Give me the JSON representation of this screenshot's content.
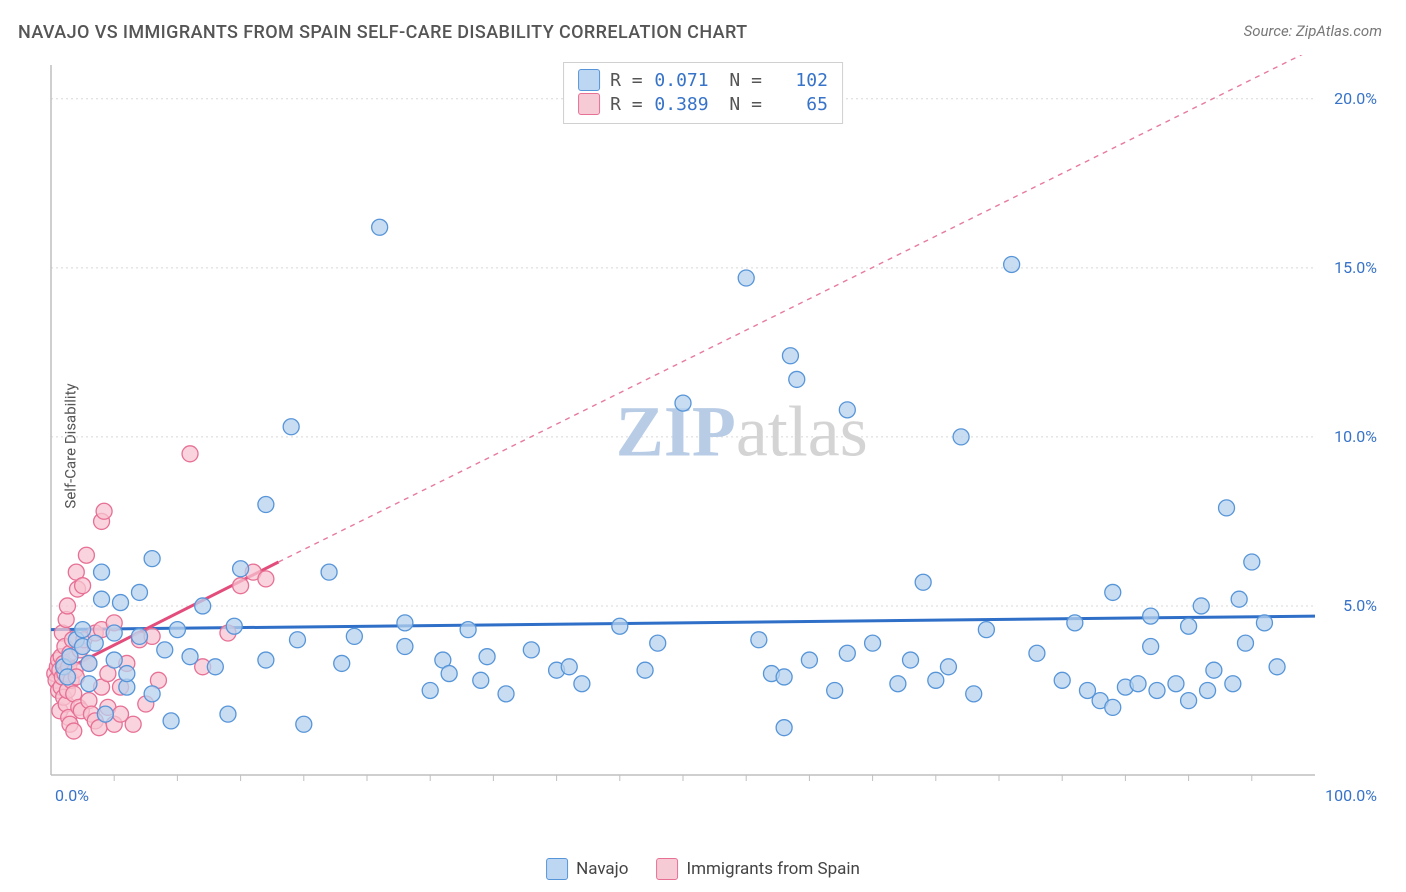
{
  "title": "NAVAJO VS IMMIGRANTS FROM SPAIN SELF-CARE DISABILITY CORRELATION CHART",
  "source": "Source: ZipAtlas.com",
  "ylabel": "Self-Care Disability",
  "watermark": {
    "text_zip": "ZIP",
    "text_atlas": "atlas",
    "color_zip": "#b8cce6",
    "color_atlas": "#d4d4d4",
    "fontsize": 72
  },
  "chart": {
    "type": "scatter-correlation",
    "background_color": "#ffffff",
    "grid_color": "#d8d8d8",
    "axis_color": "#bfbfbf",
    "tick_label_color": "#3773c8",
    "tick_fontsize": 16,
    "xlim": [
      0,
      100
    ],
    "ylim": [
      0,
      21
    ],
    "x_ticks": [
      0,
      100
    ],
    "x_tick_labels": [
      "0.0%",
      "100.0%"
    ],
    "y_ticks": [
      5,
      10,
      15,
      20
    ],
    "y_tick_labels": [
      "5.0%",
      "10.0%",
      "15.0%",
      "20.0%"
    ],
    "x_minor_grid": [
      5,
      10,
      15,
      20,
      25,
      30,
      35,
      40,
      45,
      50,
      55,
      60,
      65,
      70,
      75,
      80,
      85,
      90,
      95
    ],
    "marker_radius": 8,
    "marker_stroke_width": 1.3,
    "series": {
      "navajo": {
        "label": "Navajo",
        "R": "0.071",
        "N": "102",
        "fill": "#b5d1ee",
        "stroke": "#5795d9",
        "trend": {
          "x1": 0,
          "y1": 4.3,
          "x2": 100,
          "y2": 4.7,
          "color": "#2f6fc7",
          "width": 3,
          "dash": ""
        },
        "trend_ext": null,
        "points": [
          [
            1.0,
            3.2
          ],
          [
            1.3,
            2.9
          ],
          [
            1.5,
            3.5
          ],
          [
            2.0,
            4.0
          ],
          [
            2.5,
            3.8
          ],
          [
            2.5,
            4.3
          ],
          [
            3.0,
            2.7
          ],
          [
            3.0,
            3.3
          ],
          [
            3.5,
            3.9
          ],
          [
            4.0,
            5.2
          ],
          [
            4.0,
            6.0
          ],
          [
            4.3,
            1.8
          ],
          [
            5.0,
            3.4
          ],
          [
            5.0,
            4.2
          ],
          [
            5.5,
            5.1
          ],
          [
            6.0,
            2.6
          ],
          [
            6.0,
            3.0
          ],
          [
            7.0,
            4.1
          ],
          [
            7.0,
            5.4
          ],
          [
            8.0,
            2.4
          ],
          [
            8.0,
            6.4
          ],
          [
            9.0,
            3.7
          ],
          [
            9.5,
            1.6
          ],
          [
            10.0,
            4.3
          ],
          [
            11.0,
            3.5
          ],
          [
            12.0,
            5.0
          ],
          [
            13.0,
            3.2
          ],
          [
            14.0,
            1.8
          ],
          [
            14.5,
            4.4
          ],
          [
            15.0,
            6.1
          ],
          [
            17.0,
            3.4
          ],
          [
            17.0,
            8.0
          ],
          [
            19.0,
            10.3
          ],
          [
            19.5,
            4.0
          ],
          [
            20.0,
            1.5
          ],
          [
            22.0,
            6.0
          ],
          [
            23.0,
            3.3
          ],
          [
            24.0,
            4.1
          ],
          [
            26.0,
            16.2
          ],
          [
            28.0,
            3.8
          ],
          [
            28.0,
            4.5
          ],
          [
            30.0,
            2.5
          ],
          [
            31.0,
            3.4
          ],
          [
            31.5,
            3.0
          ],
          [
            33.0,
            4.3
          ],
          [
            34.0,
            2.8
          ],
          [
            34.5,
            3.5
          ],
          [
            36.0,
            2.4
          ],
          [
            38.0,
            3.7
          ],
          [
            40.0,
            3.1
          ],
          [
            41.0,
            3.2
          ],
          [
            42.0,
            2.7
          ],
          [
            45.0,
            4.4
          ],
          [
            47.0,
            3.1
          ],
          [
            48.0,
            3.9
          ],
          [
            50.0,
            11.0
          ],
          [
            55.0,
            14.7
          ],
          [
            56.0,
            4.0
          ],
          [
            57.0,
            3.0
          ],
          [
            58.0,
            1.4
          ],
          [
            58.0,
            2.9
          ],
          [
            58.5,
            12.4
          ],
          [
            59.0,
            11.7
          ],
          [
            60.0,
            3.4
          ],
          [
            62.0,
            2.5
          ],
          [
            63.0,
            3.6
          ],
          [
            63.0,
            10.8
          ],
          [
            65.0,
            3.9
          ],
          [
            67.0,
            2.7
          ],
          [
            68.0,
            3.4
          ],
          [
            69.0,
            5.7
          ],
          [
            70.0,
            2.8
          ],
          [
            71.0,
            3.2
          ],
          [
            72.0,
            10.0
          ],
          [
            73.0,
            2.4
          ],
          [
            74.0,
            4.3
          ],
          [
            76.0,
            15.1
          ],
          [
            78.0,
            3.6
          ],
          [
            80.0,
            2.8
          ],
          [
            81.0,
            4.5
          ],
          [
            82.0,
            2.5
          ],
          [
            83.0,
            2.2
          ],
          [
            84.0,
            2.0
          ],
          [
            84.0,
            5.4
          ],
          [
            85.0,
            2.6
          ],
          [
            86.0,
            2.7
          ],
          [
            87.0,
            4.7
          ],
          [
            87.0,
            3.8
          ],
          [
            87.5,
            2.5
          ],
          [
            89.0,
            2.7
          ],
          [
            90.0,
            4.4
          ],
          [
            90.0,
            2.2
          ],
          [
            91.0,
            5.0
          ],
          [
            91.5,
            2.5
          ],
          [
            92.0,
            3.1
          ],
          [
            93.0,
            7.9
          ],
          [
            93.5,
            2.7
          ],
          [
            94.0,
            5.2
          ],
          [
            94.5,
            3.9
          ],
          [
            95.0,
            6.3
          ],
          [
            96.0,
            4.5
          ],
          [
            97.0,
            3.2
          ]
        ]
      },
      "spain": {
        "label": "Immigrants from Spain",
        "R": "0.389",
        "N": "65",
        "fill": "#f7c4d2",
        "stroke": "#e77095",
        "trend": {
          "x1": 0,
          "y1": 2.9,
          "x2": 18,
          "y2": 6.3,
          "color": "#e34d7c",
          "width": 3,
          "dash": ""
        },
        "trend_ext": {
          "x1": 18,
          "y1": 6.3,
          "x2": 100,
          "y2": 21.5,
          "color": "#e77aa0",
          "width": 1.4,
          "dash": "5,5"
        },
        "points": [
          [
            0.3,
            3.0
          ],
          [
            0.4,
            2.8
          ],
          [
            0.5,
            3.2
          ],
          [
            0.6,
            2.5
          ],
          [
            0.6,
            3.4
          ],
          [
            0.7,
            3.1
          ],
          [
            0.7,
            1.9
          ],
          [
            0.8,
            2.6
          ],
          [
            0.8,
            3.5
          ],
          [
            0.9,
            2.9
          ],
          [
            0.9,
            4.2
          ],
          [
            1.0,
            3.3
          ],
          [
            1.0,
            2.3
          ],
          [
            1.1,
            3.0
          ],
          [
            1.1,
            3.8
          ],
          [
            1.2,
            2.1
          ],
          [
            1.2,
            4.6
          ],
          [
            1.3,
            5.0
          ],
          [
            1.3,
            2.5
          ],
          [
            1.4,
            3.2
          ],
          [
            1.4,
            1.7
          ],
          [
            1.5,
            3.6
          ],
          [
            1.5,
            1.5
          ],
          [
            1.6,
            2.8
          ],
          [
            1.7,
            4.0
          ],
          [
            1.8,
            2.4
          ],
          [
            1.8,
            1.3
          ],
          [
            1.9,
            3.1
          ],
          [
            2.0,
            6.0
          ],
          [
            2.0,
            2.9
          ],
          [
            2.1,
            5.5
          ],
          [
            2.2,
            2.0
          ],
          [
            2.3,
            3.7
          ],
          [
            2.4,
            1.9
          ],
          [
            2.5,
            5.6
          ],
          [
            2.6,
            4.0
          ],
          [
            2.8,
            6.5
          ],
          [
            3.0,
            2.2
          ],
          [
            3.0,
            3.3
          ],
          [
            3.2,
            1.8
          ],
          [
            3.5,
            4.2
          ],
          [
            3.5,
            1.6
          ],
          [
            3.8,
            1.4
          ],
          [
            4.0,
            2.6
          ],
          [
            4.0,
            4.3
          ],
          [
            4.0,
            7.5
          ],
          [
            4.2,
            7.8
          ],
          [
            4.5,
            2.0
          ],
          [
            4.5,
            3.0
          ],
          [
            5.0,
            1.5
          ],
          [
            5.0,
            4.5
          ],
          [
            5.5,
            2.6
          ],
          [
            5.5,
            1.8
          ],
          [
            6.0,
            3.3
          ],
          [
            6.5,
            1.5
          ],
          [
            7.0,
            4.0
          ],
          [
            7.5,
            2.1
          ],
          [
            8.0,
            4.1
          ],
          [
            8.5,
            2.8
          ],
          [
            11.0,
            9.5
          ],
          [
            12.0,
            3.2
          ],
          [
            14.0,
            4.2
          ],
          [
            15.0,
            5.6
          ],
          [
            16.0,
            6.0
          ],
          [
            17.0,
            5.8
          ]
        ]
      }
    }
  }
}
